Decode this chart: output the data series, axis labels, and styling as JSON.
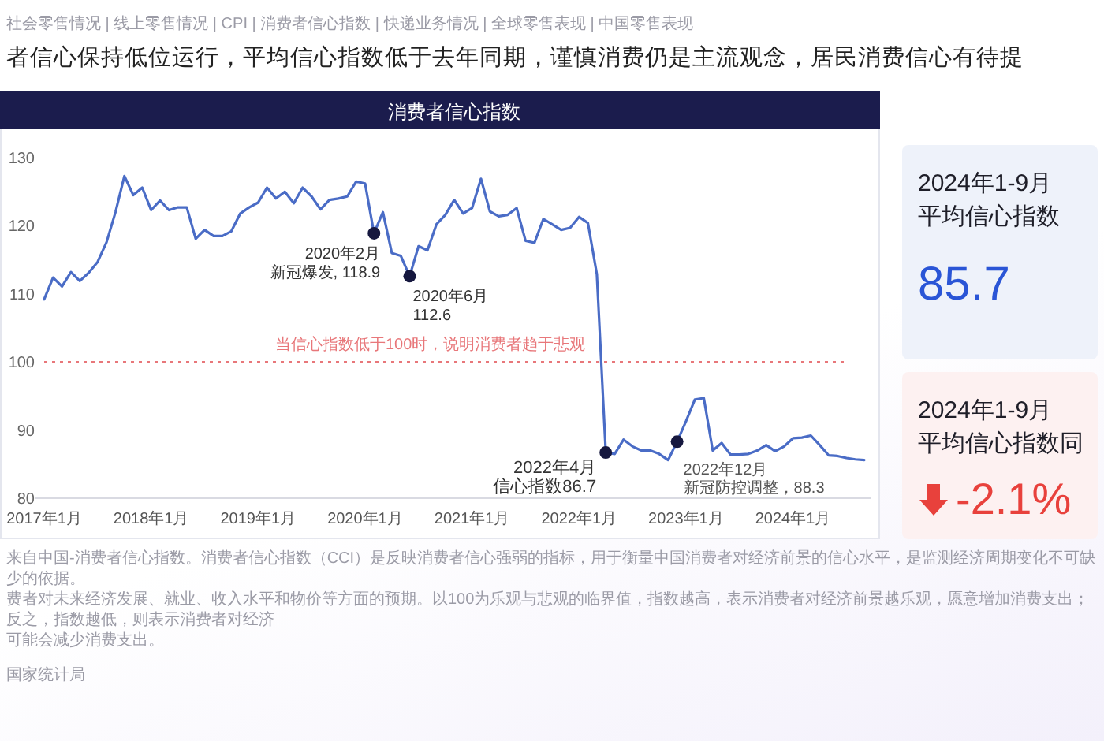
{
  "chart_data": [
    {
      "type": "line",
      "title": "消费者信心指数",
      "subtitle": "者信心保持低位运行，平均信心指数低于去年同期，谨慎消费仍是主流观念，居民消费信心有待提",
      "x": [
        "2017-01",
        "2017-02",
        "2017-03",
        "2017-04",
        "2017-05",
        "2017-06",
        "2017-07",
        "2017-08",
        "2017-09",
        "2017-10",
        "2017-11",
        "2017-12",
        "2018-01",
        "2018-02",
        "2018-03",
        "2018-04",
        "2018-05",
        "2018-06",
        "2018-07",
        "2018-08",
        "2018-09",
        "2018-10",
        "2018-11",
        "2018-12",
        "2019-01",
        "2019-02",
        "2019-03",
        "2019-04",
        "2019-05",
        "2019-06",
        "2019-07",
        "2019-08",
        "2019-09",
        "2019-10",
        "2019-11",
        "2019-12",
        "2020-01",
        "2020-02",
        "2020-03",
        "2020-04",
        "2020-05",
        "2020-06",
        "2020-07",
        "2020-08",
        "2020-09",
        "2020-10",
        "2020-11",
        "2020-12",
        "2021-01",
        "2021-02",
        "2021-03",
        "2021-04",
        "2021-05",
        "2021-06",
        "2021-07",
        "2021-08",
        "2021-09",
        "2021-10",
        "2021-11",
        "2021-12",
        "2022-01",
        "2022-02",
        "2022-03",
        "2022-04",
        "2022-05",
        "2022-06",
        "2022-07",
        "2022-08",
        "2022-09",
        "2022-10",
        "2022-11",
        "2022-12",
        "2023-01",
        "2023-02",
        "2023-03",
        "2023-04",
        "2023-05",
        "2023-06",
        "2023-07",
        "2023-08",
        "2023-09",
        "2023-10",
        "2023-11",
        "2023-12",
        "2024-01",
        "2024-02",
        "2024-03",
        "2024-04",
        "2024-05",
        "2024-06",
        "2024-07",
        "2024-08",
        "2024-09"
      ],
      "series": [
        {
          "type": "line",
          "color": "#4a6cc6",
          "values": [
            109.2,
            112.4,
            111.1,
            113.2,
            111.9,
            113.1,
            114.7,
            117.6,
            122.0,
            127.3,
            124.5,
            125.6,
            122.3,
            123.7,
            122.3,
            122.7,
            122.7,
            118.1,
            119.4,
            118.5,
            118.5,
            119.2,
            121.8,
            122.7,
            123.4,
            125.6,
            124.0,
            125.0,
            123.3,
            125.6,
            124.3,
            122.4,
            123.8,
            124.0,
            124.3,
            126.5,
            126.2,
            118.9,
            122.0,
            116.0,
            115.6,
            112.6,
            117.0,
            116.4,
            120.2,
            121.6,
            123.8,
            121.8,
            122.6,
            126.9,
            122.1,
            121.4,
            121.6,
            122.6,
            117.8,
            117.5,
            121.0,
            120.2,
            119.4,
            119.7,
            121.3,
            120.4,
            112.9,
            86.7,
            86.5,
            88.6,
            87.6,
            87.0,
            87.0,
            86.5,
            85.6,
            88.3,
            91.3,
            94.5,
            94.7,
            87.0,
            88.1,
            86.4,
            86.4,
            86.5,
            87.0,
            87.8,
            86.9,
            87.6,
            88.8,
            88.9,
            89.2,
            87.8,
            86.3,
            86.2,
            85.9,
            85.7,
            85.6
          ]
        },
        {
          "type": "scatter",
          "color": "#16183f",
          "marker": "circle",
          "x": [
            "2020-02",
            "2020-06",
            "2022-04",
            "2022-12"
          ],
          "values": [
            118.9,
            112.6,
            86.7,
            88.3
          ]
        }
      ],
      "xlim": [
        "2017-01",
        "2024-09"
      ],
      "xticks": [
        {
          "value": "2017-01",
          "label": "2017年1月"
        },
        {
          "value": "2018-01",
          "label": "2018年1月"
        },
        {
          "value": "2019-01",
          "label": "2019年1月"
        },
        {
          "value": "2020-01",
          "label": "2020年1月"
        },
        {
          "value": "2021-01",
          "label": "2021年1月"
        },
        {
          "value": "2022-01",
          "label": "2022年1月"
        },
        {
          "value": "2023-01",
          "label": "2023年1月"
        },
        {
          "value": "2024-01",
          "label": "2024年1月"
        }
      ],
      "ylim": [
        80,
        130
      ],
      "yticks": [
        80,
        90,
        100,
        110,
        120,
        130
      ],
      "ref_lines": [
        {
          "axis": "y",
          "value": 100,
          "label": "当信心指数低于100时，说明消费者趋于悲观",
          "color": "#e8777a",
          "line_style": "dotted"
        }
      ],
      "annotations": [
        "社会零售情况 | 线上零售情况 | CPI | 消费者信心指数 | 快递业务情况 | 全球零售表现 | 中国零售表现",
        {
          "text": "2020年2月",
          "x": "2020-02",
          "y": 118.9
        },
        {
          "text": "新冠爆发, 118.9",
          "x": "2020-02",
          "y": 118.9
        },
        {
          "text": "2020年6月",
          "x": "2020-06",
          "y": 112.6
        },
        {
          "text": "112.6",
          "x": "2020-06",
          "y": 112.6
        },
        {
          "text": "2022年4月",
          "x": "2022-04",
          "y": 86.7
        },
        {
          "text": "信心指数86.7",
          "x": "2022-04",
          "y": 86.7
        },
        {
          "text": "2022年12月",
          "x": "2022-12",
          "y": 88.3
        },
        {
          "text": "新冠防控调整，88.3",
          "x": "2022-12",
          "y": 88.3
        },
        "来自中国-消费者信心指数。消费者信心指数（CCI）是反映消费者信心强弱的指标，用于衡量中国消费者对经济前景的信心水平，是监测经济周期变化不可缺少的依据。",
        "费者对未来经济发展、就业、收入水平和物价等方面的预期。以100为乐观与悲观的临界值，指数越高，表示消费者对经济前景越乐观，愿意增加消费支出；反之，指数越低，则表示消费者对经济",
        "可能会减少消费支出。",
        "国家统计局"
      ]
    },
    {
      "type": "other",
      "title": "2024年1-9月",
      "subtitle": "平均信心指数",
      "annotations": [
        "85.7"
      ]
    },
    {
      "type": "other",
      "title": "2024年1-9月",
      "subtitle": "平均信心指数同",
      "annotations": [
        "-2.1%"
      ]
    }
  ]
}
